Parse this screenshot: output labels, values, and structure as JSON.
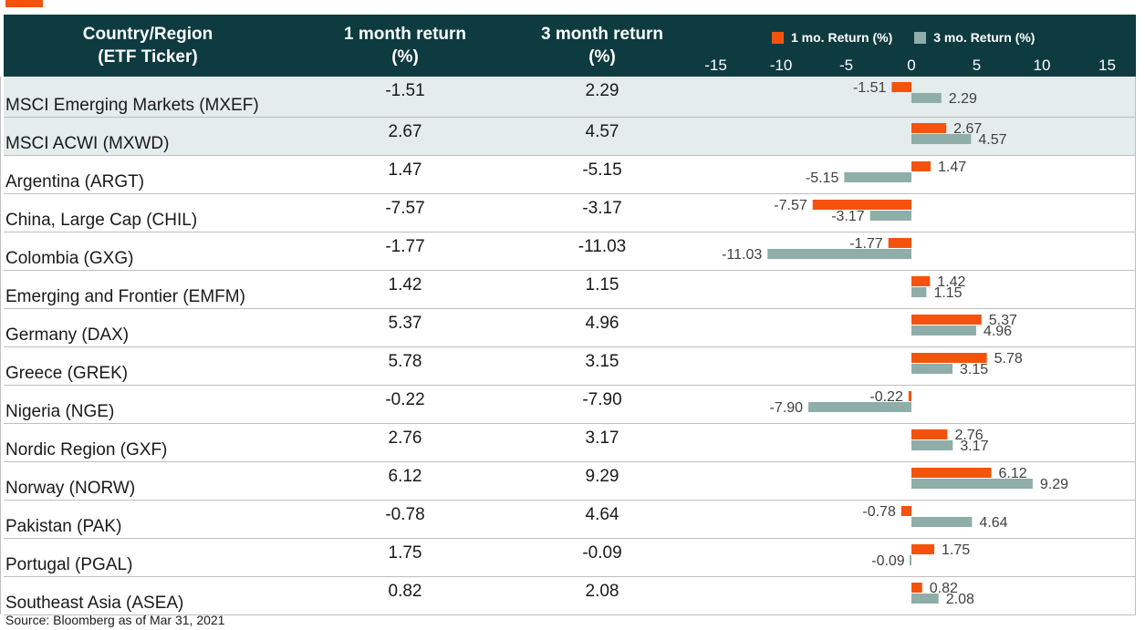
{
  "header": {
    "country_label": "Country/Region\n(ETF Ticker)",
    "one_month_label": "1 month return\n(%)",
    "three_month_label": "3 month return\n(%)"
  },
  "legend": {
    "one_month": "1 mo. Return (%)",
    "three_month": "3 mo. Return (%)"
  },
  "colors": {
    "one_month": "#f5520e",
    "three_month": "#8fada9",
    "header_bg": "#0d3b40",
    "shade": "#e4ecec"
  },
  "rows": [
    {
      "name": "MSCI Emerging Markets (MXEF)",
      "one_month": "-1.51",
      "three_month": "2.29",
      "shaded": true
    },
    {
      "name": "MSCI ACWI (MXWD)",
      "one_month": "2.67",
      "three_month": "4.57",
      "shaded": true
    },
    {
      "name": "Argentina (ARGT)",
      "one_month": "1.47",
      "three_month": "-5.15",
      "shaded": false
    },
    {
      "name": "China, Large Cap (CHIL)",
      "one_month": "-7.57",
      "three_month": "-3.17",
      "shaded": false
    },
    {
      "name": "Colombia (GXG)",
      "one_month": "-1.77",
      "three_month": "-11.03",
      "shaded": false
    },
    {
      "name": "Emerging and Frontier (EMFM)",
      "one_month": "1.42",
      "three_month": "1.15",
      "shaded": false
    },
    {
      "name": "Germany (DAX)",
      "one_month": "5.37",
      "three_month": "4.96",
      "shaded": false
    },
    {
      "name": "Greece (GREK)",
      "one_month": "5.78",
      "three_month": "3.15",
      "shaded": false
    },
    {
      "name": "Nigeria (NGE)",
      "one_month": "-0.22",
      "three_month": "-7.90",
      "shaded": false
    },
    {
      "name": "Nordic Region (GXF)",
      "one_month": "2.76",
      "three_month": "3.17",
      "shaded": false
    },
    {
      "name": "Norway (NORW)",
      "one_month": "6.12",
      "three_month": "9.29",
      "shaded": false
    },
    {
      "name": "Pakistan (PAK)",
      "one_month": "-0.78",
      "three_month": "4.64",
      "shaded": false
    },
    {
      "name": "Portugal (PGAL)",
      "one_month": "1.75",
      "three_month": "-0.09",
      "shaded": false
    },
    {
      "name": "Southeast Asia (ASEA)",
      "one_month": "0.82",
      "three_month": "2.08",
      "shaded": false
    }
  ],
  "source": "Source: Bloomberg as of Mar 31, 2021",
  "chart_data": {
    "type": "bar",
    "orientation": "horizontal",
    "categories": [
      "MSCI Emerging Markets (MXEF)",
      "MSCI ACWI (MXWD)",
      "Argentina (ARGT)",
      "China, Large Cap (CHIL)",
      "Colombia (GXG)",
      "Emerging and Frontier (EMFM)",
      "Germany (DAX)",
      "Greece (GREK)",
      "Nigeria (NGE)",
      "Nordic Region (GXF)",
      "Norway (NORW)",
      "Pakistan (PAK)",
      "Portugal (PGAL)",
      "Southeast Asia (ASEA)"
    ],
    "series": [
      {
        "name": "1 mo. Return (%)",
        "values": [
          -1.51,
          2.67,
          1.47,
          -7.57,
          -1.77,
          1.42,
          5.37,
          5.78,
          -0.22,
          2.76,
          6.12,
          -0.78,
          1.75,
          0.82
        ]
      },
      {
        "name": "3 mo. Return (%)",
        "values": [
          2.29,
          4.57,
          -5.15,
          -3.17,
          -11.03,
          1.15,
          4.96,
          3.15,
          -7.9,
          3.17,
          9.29,
          4.64,
          -0.09,
          2.08
        ]
      }
    ],
    "labels": [
      [
        "-1.51",
        "2.67",
        "1.47",
        "-7.57",
        "-1.77",
        "1.42",
        "5.37",
        "5.78",
        "-0.22",
        "2.76",
        "6.12",
        "-0.78",
        "1.75",
        "0.82"
      ],
      [
        "2.29",
        "4.57",
        "-5.15",
        "-3.17",
        "-11.03",
        "1.15",
        "4.96",
        "3.15",
        "-7.90",
        "3.17",
        "9.29",
        "4.64",
        "-0.09",
        "2.08"
      ]
    ],
    "xticks": [
      -15,
      -10,
      -5,
      0,
      5,
      10,
      15
    ],
    "xtick_labels": [
      "-15",
      "-10",
      "-5",
      "0",
      "5",
      "10",
      "15"
    ],
    "xlim": [
      -15,
      15
    ],
    "legend_position": "top",
    "grid": false
  }
}
